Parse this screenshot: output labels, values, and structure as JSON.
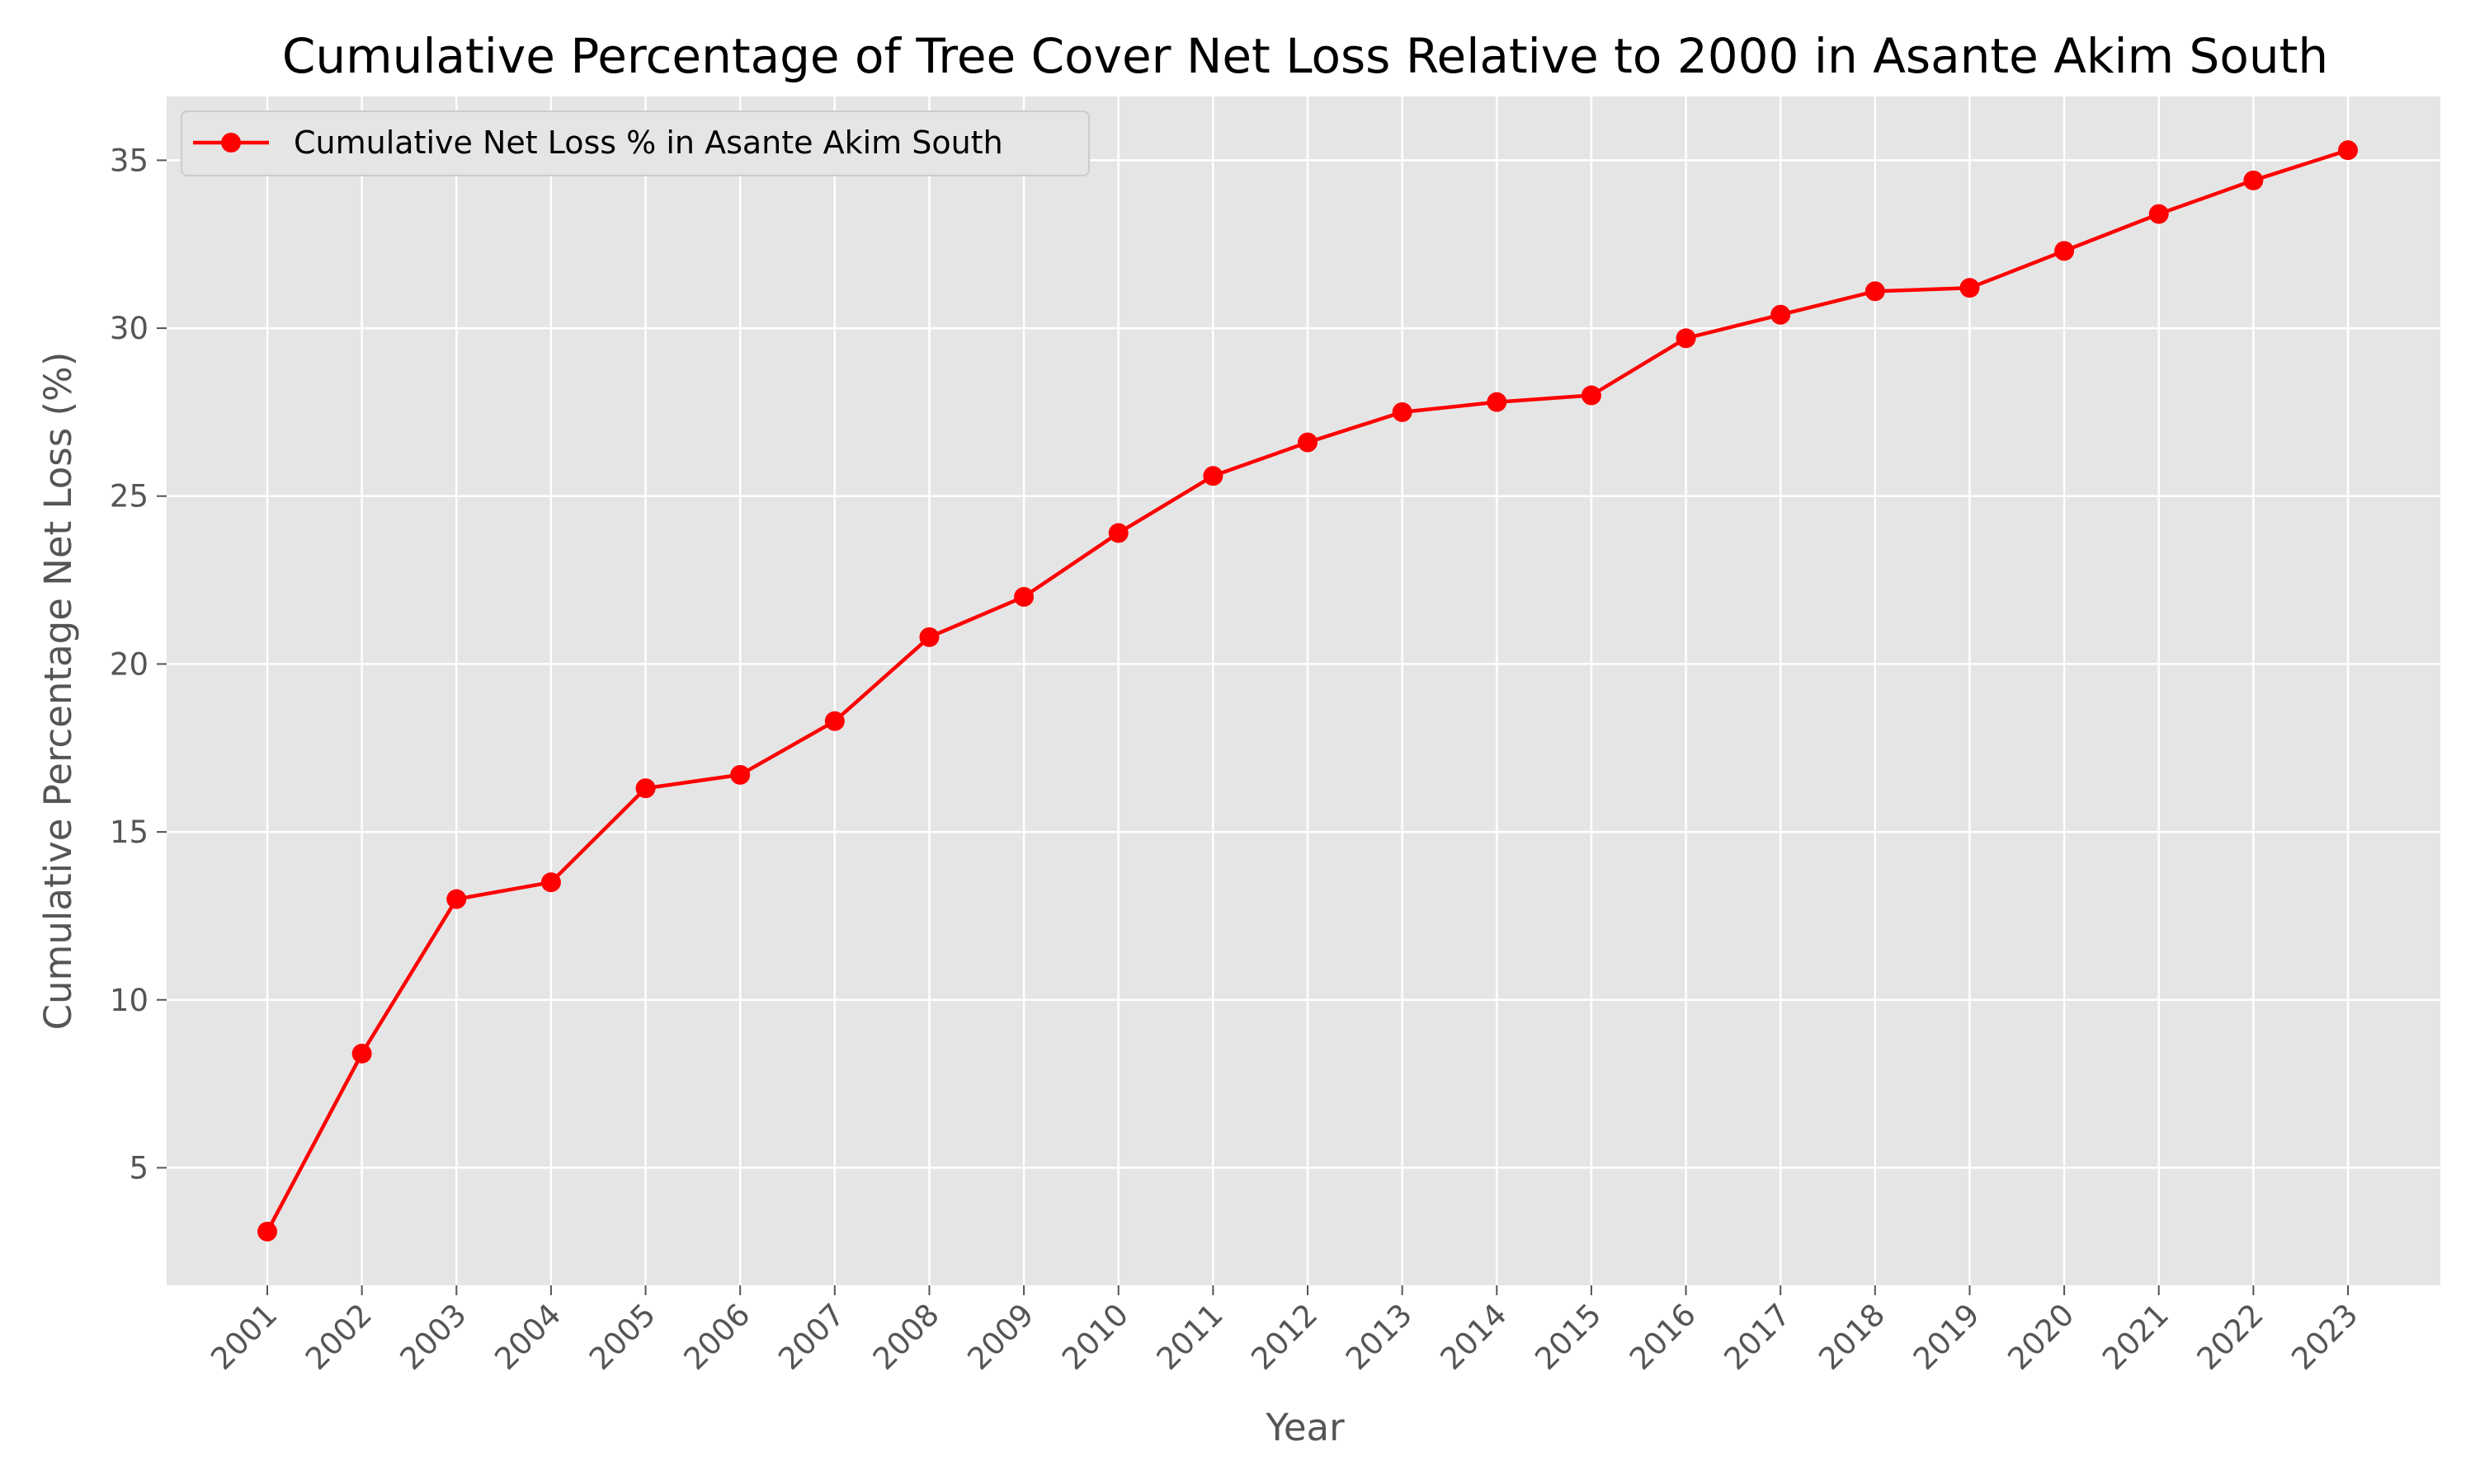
{
  "chart_data": {
    "type": "line",
    "title": "Cumulative Percentage of Tree Cover Net Loss Relative to 2000 in Asante Akim South",
    "xlabel": "Year",
    "ylabel": "Cumulative Percentage Net Loss (%)",
    "x": [
      "2001",
      "2002",
      "2003",
      "2004",
      "2005",
      "2006",
      "2007",
      "2008",
      "2009",
      "2010",
      "2011",
      "2012",
      "2013",
      "2014",
      "2015",
      "2016",
      "2017",
      "2018",
      "2019",
      "2020",
      "2021",
      "2022",
      "2023"
    ],
    "series": [
      {
        "name": "Cumulative Net Loss % in Asante Akim South",
        "color": "#ff0000",
        "marker": "circle",
        "values": [
          3.1,
          8.4,
          13.0,
          13.5,
          16.3,
          16.7,
          18.3,
          20.8,
          22.0,
          23.9,
          25.6,
          26.6,
          27.5,
          27.8,
          28.0,
          29.7,
          30.4,
          31.1,
          31.2,
          32.3,
          33.4,
          34.4,
          35.3
        ]
      }
    ],
    "ylim": [
      1.5,
      36.9
    ],
    "yticks": [
      5,
      10,
      15,
      20,
      25,
      30,
      35
    ],
    "grid": true,
    "legend_position": "top-left",
    "plot_background": "#e5e5e5",
    "grid_color": "#ffffff"
  }
}
